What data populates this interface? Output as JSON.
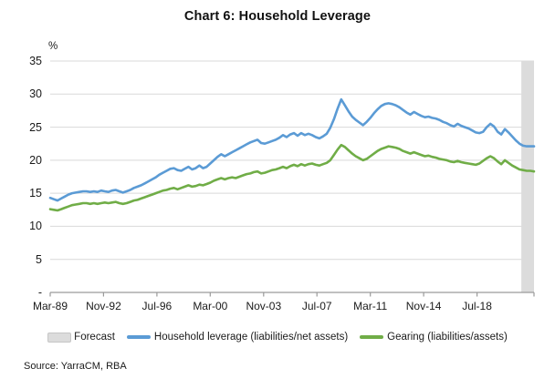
{
  "title": "Chart 6: Household Leverage",
  "source": "Source: YarraCM, RBA",
  "y_axis": {
    "unit_label": "%",
    "tick_labels": [
      "35",
      "30",
      "25",
      "20",
      "15",
      "10",
      "5",
      "-"
    ],
    "min": 0,
    "max": 35,
    "step": 5
  },
  "x_axis": {
    "tick_labels": [
      "Mar-89",
      "Nov-92",
      "Jul-96",
      "Mar-00",
      "Nov-03",
      "Jul-07",
      "Mar-11",
      "Nov-14",
      "Jul-18"
    ],
    "tick_month_offsets": [
      0,
      44,
      88,
      132,
      176,
      220,
      264,
      308,
      352
    ]
  },
  "legend": [
    {
      "label": "Forecast",
      "swatch": "band",
      "color": "#dcdcdc"
    },
    {
      "label": "Household leverage (liabilities/net assets)",
      "swatch": "line",
      "color": "#5b9bd5"
    },
    {
      "label": "Gearing (liabilities/assets)",
      "swatch": "line",
      "color": "#70ad47"
    }
  ],
  "colors": {
    "household_leverage": "#5b9bd5",
    "gearing": "#70ad47",
    "gridline": "#d9d9d9",
    "axis": "#9a9a9a",
    "forecast_band": "#dcdcdc"
  },
  "chart_data": {
    "type": "line",
    "title": "Chart 6: Household Leverage",
    "ylabel": "%",
    "ylim": [
      0,
      35
    ],
    "y_tick_step": 5,
    "grid": "horizontal",
    "legend_position": "bottom",
    "x_start": "Mar-1989",
    "x_end": "Jun-2022",
    "frequency": "quarterly",
    "x_tick_labels": [
      "Mar-89",
      "Nov-92",
      "Jul-96",
      "Mar-00",
      "Nov-03",
      "Jul-07",
      "Mar-11",
      "Nov-14",
      "Jul-18"
    ],
    "forecast_band": {
      "label": "Forecast",
      "start": "Sep-2021",
      "end": "Jun-2022",
      "start_index": 130
    },
    "series": [
      {
        "name": "Household leverage (liabilities/net assets)",
        "color": "#5b9bd5",
        "values": [
          14.3,
          14.1,
          13.9,
          14.2,
          14.5,
          14.8,
          15.0,
          15.1,
          15.2,
          15.3,
          15.3,
          15.2,
          15.3,
          15.2,
          15.4,
          15.3,
          15.2,
          15.4,
          15.5,
          15.3,
          15.1,
          15.3,
          15.5,
          15.8,
          16.0,
          16.2,
          16.5,
          16.8,
          17.1,
          17.4,
          17.8,
          18.1,
          18.4,
          18.7,
          18.8,
          18.5,
          18.4,
          18.7,
          19.0,
          18.6,
          18.8,
          19.2,
          18.8,
          19.0,
          19.5,
          20.0,
          20.5,
          20.9,
          20.6,
          20.9,
          21.2,
          21.5,
          21.8,
          22.1,
          22.4,
          22.7,
          22.9,
          23.1,
          22.6,
          22.5,
          22.7,
          22.9,
          23.1,
          23.4,
          23.8,
          23.5,
          23.9,
          24.1,
          23.7,
          24.1,
          23.8,
          24.0,
          23.8,
          23.5,
          23.3,
          23.6,
          24.0,
          24.9,
          26.2,
          27.8,
          29.2,
          28.3,
          27.4,
          26.6,
          26.1,
          25.7,
          25.3,
          25.8,
          26.4,
          27.1,
          27.7,
          28.2,
          28.5,
          28.6,
          28.5,
          28.3,
          28.0,
          27.6,
          27.2,
          26.9,
          27.3,
          27.0,
          26.7,
          26.5,
          26.6,
          26.4,
          26.3,
          26.1,
          25.8,
          25.6,
          25.3,
          25.1,
          25.5,
          25.2,
          25.0,
          24.8,
          24.5,
          24.2,
          24.1,
          24.3,
          25.0,
          25.5,
          25.1,
          24.3,
          23.9,
          24.7,
          24.2,
          23.6,
          23.0,
          22.5,
          22.2,
          22.1,
          22.1,
          22.1
        ]
      },
      {
        "name": "Gearing (liabilities/assets)",
        "color": "#70ad47",
        "values": [
          12.6,
          12.5,
          12.4,
          12.6,
          12.8,
          13.0,
          13.2,
          13.3,
          13.4,
          13.5,
          13.5,
          13.4,
          13.5,
          13.4,
          13.5,
          13.6,
          13.5,
          13.6,
          13.7,
          13.5,
          13.4,
          13.5,
          13.7,
          13.9,
          14.0,
          14.2,
          14.4,
          14.6,
          14.8,
          15.0,
          15.2,
          15.4,
          15.5,
          15.7,
          15.8,
          15.6,
          15.8,
          16.0,
          16.2,
          16.0,
          16.1,
          16.3,
          16.2,
          16.4,
          16.6,
          16.9,
          17.1,
          17.3,
          17.1,
          17.3,
          17.4,
          17.3,
          17.5,
          17.7,
          17.9,
          18.0,
          18.2,
          18.3,
          18.0,
          18.1,
          18.3,
          18.5,
          18.6,
          18.8,
          19.0,
          18.8,
          19.1,
          19.3,
          19.1,
          19.4,
          19.2,
          19.4,
          19.5,
          19.3,
          19.2,
          19.4,
          19.6,
          20.0,
          20.8,
          21.6,
          22.3,
          22.0,
          21.5,
          21.0,
          20.6,
          20.3,
          20.0,
          20.2,
          20.6,
          21.0,
          21.4,
          21.7,
          21.9,
          22.1,
          22.0,
          21.9,
          21.7,
          21.4,
          21.2,
          21.0,
          21.2,
          21.0,
          20.8,
          20.6,
          20.7,
          20.5,
          20.4,
          20.2,
          20.1,
          20.0,
          19.8,
          19.7,
          19.9,
          19.7,
          19.6,
          19.5,
          19.4,
          19.3,
          19.5,
          19.9,
          20.3,
          20.6,
          20.3,
          19.8,
          19.4,
          20.0,
          19.6,
          19.2,
          18.9,
          18.6,
          18.5,
          18.4,
          18.4,
          18.3
        ]
      }
    ]
  }
}
